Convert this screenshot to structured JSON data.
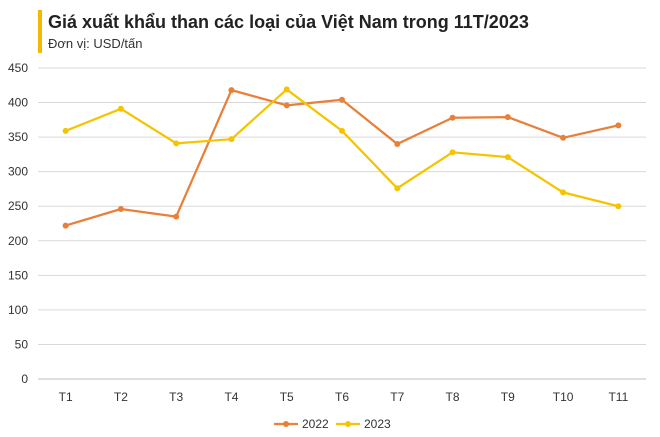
{
  "chart_data": {
    "type": "line",
    "title": "Giá xuất khẩu than các loại của Việt Nam trong 11T/2023",
    "subtitle": "Đơn vị: USD/tấn",
    "categories": [
      "T1",
      "T2",
      "T3",
      "T4",
      "T5",
      "T6",
      "T7",
      "T8",
      "T9",
      "T10",
      "T11"
    ],
    "series": [
      {
        "name": "2022",
        "color": "#e8803a",
        "values": [
          222,
          246,
          235,
          418,
          396,
          404,
          340,
          378,
          379,
          349,
          367
        ]
      },
      {
        "name": "2023",
        "color": "#f5c400",
        "values": [
          359,
          391,
          341,
          347,
          419,
          359,
          276,
          328,
          321,
          270,
          250
        ]
      }
    ],
    "ylim": [
      0,
      450
    ],
    "yticks": [
      0,
      50,
      100,
      150,
      200,
      250,
      300,
      350,
      400,
      450
    ],
    "grid": true,
    "legend": "bottom"
  }
}
